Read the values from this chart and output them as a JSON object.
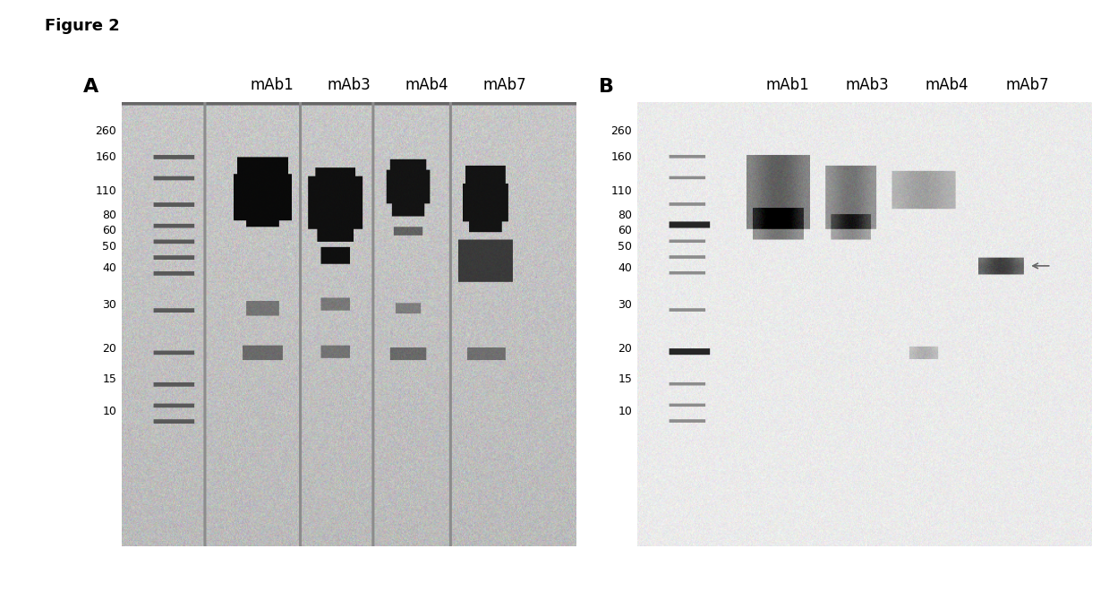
{
  "figure_title": "Figure 2",
  "panel_A_label": "A",
  "panel_B_label": "B",
  "sample_labels": [
    "mAb1",
    "mAb3",
    "mAb4",
    "mAb7"
  ],
  "mw_markers": [
    260,
    160,
    110,
    80,
    60,
    50,
    40,
    30,
    20,
    15,
    10
  ],
  "mw_markers_B_bold": [
    80,
    20
  ],
  "background_color": "#ffffff",
  "gel_bg_A": "#c8c8c8",
  "gel_bg_B": "#d8d8d8",
  "title_fontsize": 13,
  "label_fontsize": 12,
  "mw_fontsize": 9
}
